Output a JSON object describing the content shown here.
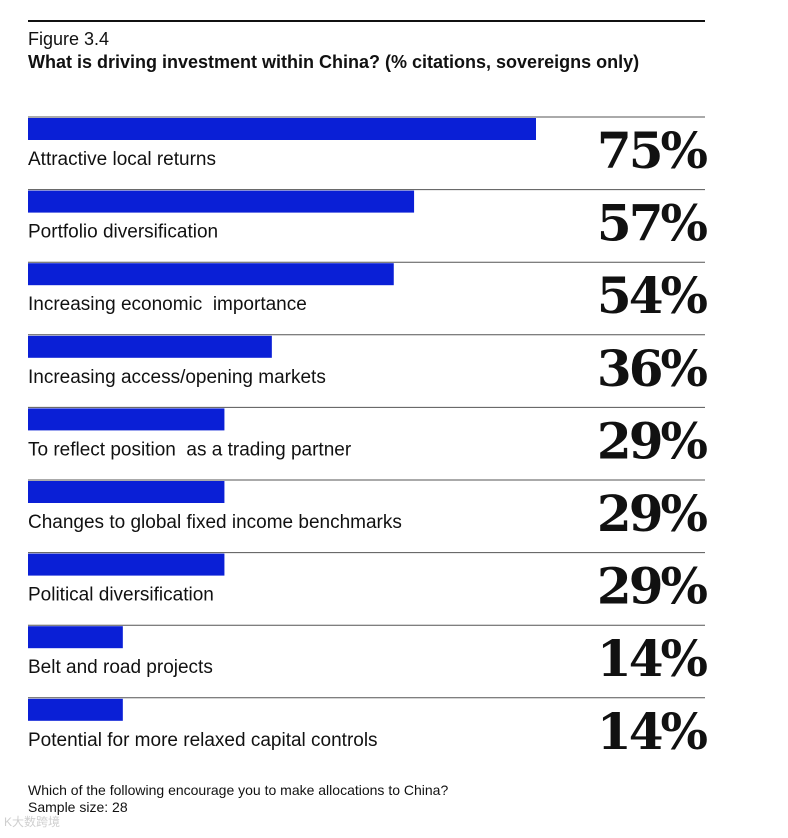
{
  "figure_label": "Figure 3.4",
  "watermark": "K大数跨境",
  "chart_data": {
    "type": "bar",
    "orientation": "horizontal",
    "title": "What is driving investment within China? (% citations, sovereigns only)",
    "categories": [
      "Attractive local returns",
      "Portfolio diversification",
      "Increasing economic  importance",
      "Increasing access/opening markets",
      "To reflect position  as a trading partner",
      "Changes to global fixed income benchmarks",
      "Political diversification",
      "Belt and road projects",
      "Potential for more relaxed capital controls"
    ],
    "values": [
      75,
      57,
      54,
      36,
      29,
      29,
      29,
      14,
      14
    ],
    "value_labels": [
      "75%",
      "57%",
      "54%",
      "36%",
      "29%",
      "29%",
      "29%",
      "14%",
      "14%"
    ],
    "unit": "%",
    "xlim": [
      0,
      100
    ],
    "bar_color": "#0a1fd6",
    "grid": false,
    "legend": "none"
  },
  "footnote": {
    "question": "Which of the following encourage you to make allocations to China?",
    "sample": "Sample size: 28"
  }
}
